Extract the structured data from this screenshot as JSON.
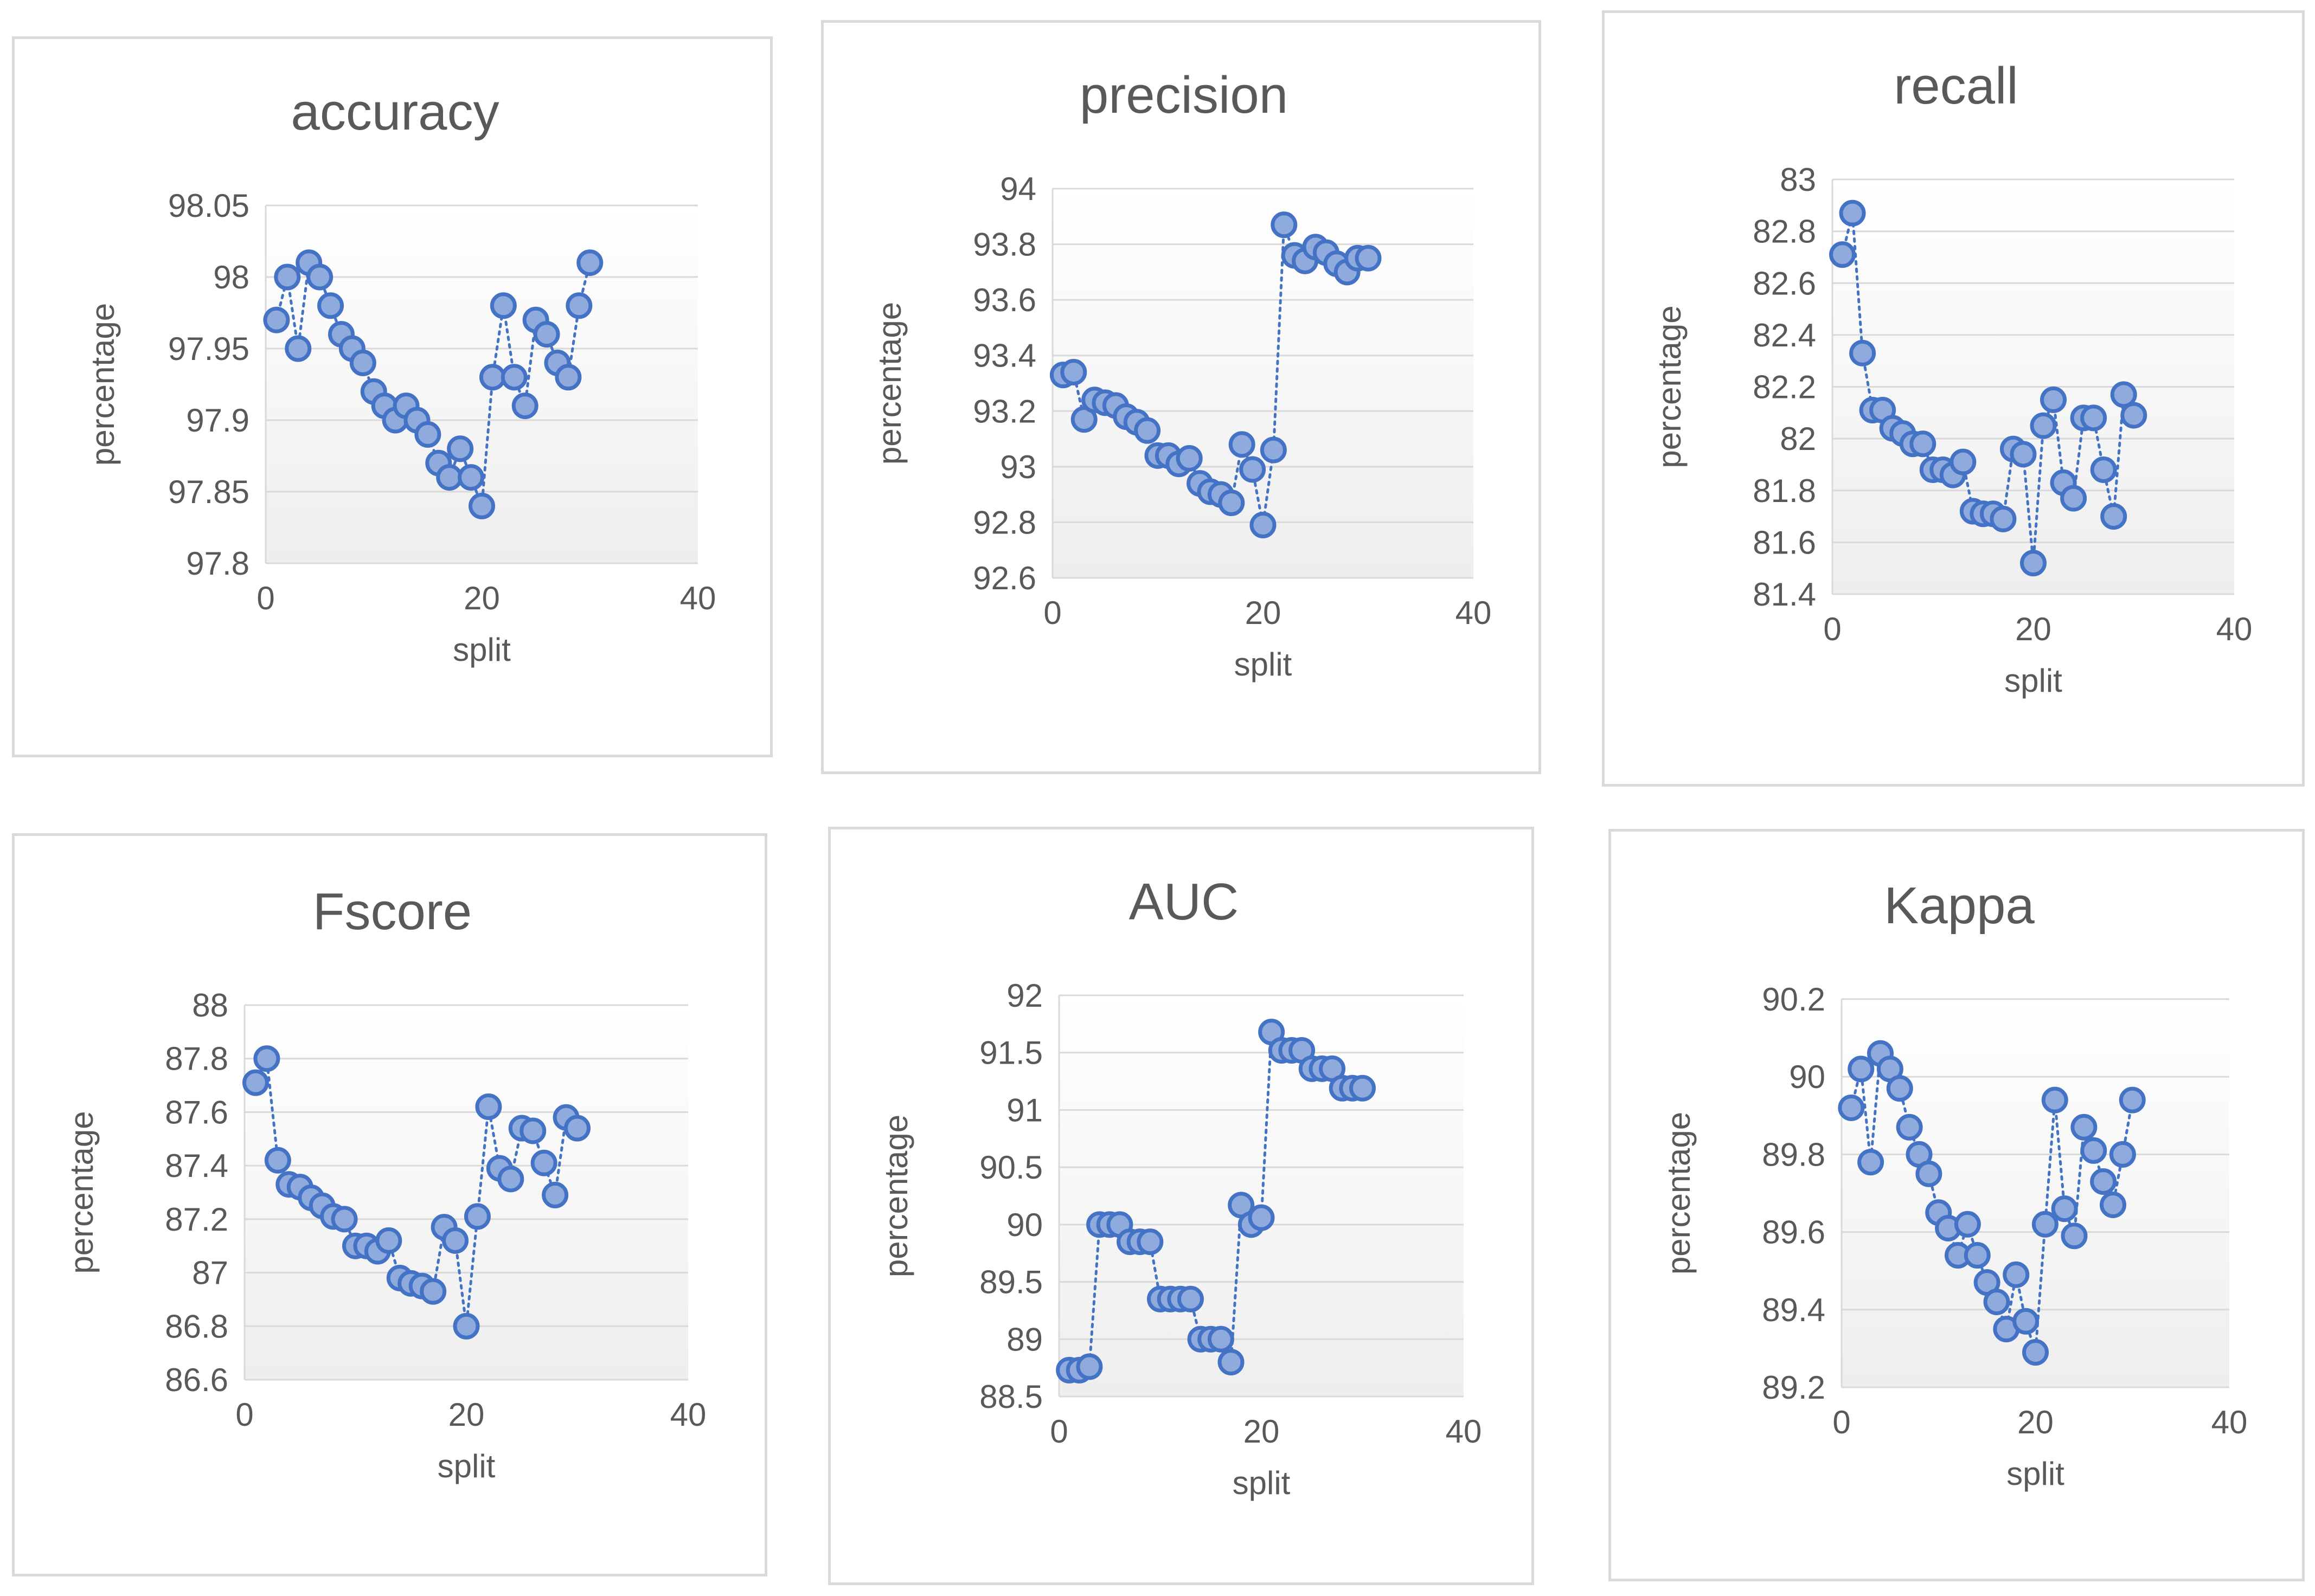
{
  "chart_data": [
    {
      "type": "scatter",
      "title": "accuracy",
      "xlabel": "split",
      "ylabel": "percentage",
      "xlim": [
        0,
        40
      ],
      "xticks": [
        "0",
        "20",
        "40"
      ],
      "ylim": [
        97.8,
        98.05
      ],
      "yticks": [
        "97.8",
        "97.85",
        "97.9",
        "97.95",
        "98",
        "98.05"
      ],
      "x": [
        1,
        2,
        3,
        4,
        5,
        6,
        7,
        8,
        9,
        10,
        11,
        12,
        13,
        14,
        15,
        16,
        17,
        18,
        19,
        20,
        21,
        22,
        23,
        24,
        25,
        26,
        27,
        28,
        29,
        30
      ],
      "y": [
        97.97,
        98.0,
        97.95,
        98.01,
        98.0,
        97.98,
        97.96,
        97.95,
        97.94,
        97.92,
        97.91,
        97.9,
        97.91,
        97.9,
        97.89,
        97.87,
        97.86,
        97.88,
        97.86,
        97.84,
        97.93,
        97.98,
        97.93,
        97.91,
        97.97,
        97.96,
        97.94,
        97.93,
        97.98,
        98.01
      ]
    },
    {
      "type": "scatter",
      "title": "precision",
      "xlabel": "split",
      "ylabel": "percentage",
      "xlim": [
        0,
        40
      ],
      "xticks": [
        "0",
        "20",
        "40"
      ],
      "ylim": [
        92.6,
        94
      ],
      "yticks": [
        "92.6",
        "92.8",
        "93",
        "93.2",
        "93.4",
        "93.6",
        "93.8",
        "94"
      ],
      "x": [
        1,
        2,
        3,
        4,
        5,
        6,
        7,
        8,
        9,
        10,
        11,
        12,
        13,
        14,
        15,
        16,
        17,
        18,
        19,
        20,
        21,
        22,
        23,
        24,
        25,
        26,
        27,
        28,
        29,
        30
      ],
      "y": [
        93.33,
        93.34,
        93.17,
        93.24,
        93.23,
        93.22,
        93.18,
        93.16,
        93.13,
        93.04,
        93.04,
        93.01,
        93.03,
        92.94,
        92.91,
        92.9,
        92.87,
        93.08,
        92.99,
        92.79,
        93.06,
        93.87,
        93.76,
        93.74,
        93.79,
        93.77,
        93.73,
        93.7,
        93.75,
        93.75
      ]
    },
    {
      "type": "scatter",
      "title": "recall",
      "xlabel": "split",
      "ylabel": "percentage",
      "xlim": [
        0,
        40
      ],
      "xticks": [
        "0",
        "20",
        "40"
      ],
      "ylim": [
        81.4,
        83
      ],
      "yticks": [
        "81.4",
        "81.6",
        "81.8",
        "82",
        "82.2",
        "82.4",
        "82.6",
        "82.8",
        "83"
      ],
      "x": [
        1,
        2,
        3,
        4,
        5,
        6,
        7,
        8,
        9,
        10,
        11,
        12,
        13,
        14,
        15,
        16,
        17,
        18,
        19,
        20,
        21,
        22,
        23,
        24,
        25,
        26,
        27,
        28,
        29,
        30
      ],
      "y": [
        82.71,
        82.87,
        82.33,
        82.11,
        82.11,
        82.04,
        82.02,
        81.98,
        81.98,
        81.88,
        81.88,
        81.86,
        81.91,
        81.72,
        81.71,
        81.71,
        81.69,
        81.96,
        81.94,
        81.52,
        82.05,
        82.15,
        81.83,
        81.77,
        82.08,
        82.08,
        81.88,
        81.7,
        82.17,
        82.09
      ]
    },
    {
      "type": "scatter",
      "title": "Fscore",
      "xlabel": "split",
      "ylabel": "percentage",
      "xlim": [
        0,
        40
      ],
      "xticks": [
        "0",
        "20",
        "40"
      ],
      "ylim": [
        86.6,
        88
      ],
      "yticks": [
        "86.6",
        "86.8",
        "87",
        "87.2",
        "87.4",
        "87.6",
        "87.8",
        "88"
      ],
      "x": [
        1,
        2,
        3,
        4,
        5,
        6,
        7,
        8,
        9,
        10,
        11,
        12,
        13,
        14,
        15,
        16,
        17,
        18,
        19,
        20,
        21,
        22,
        23,
        24,
        25,
        26,
        27,
        28,
        29,
        30
      ],
      "y": [
        87.71,
        87.8,
        87.42,
        87.33,
        87.32,
        87.28,
        87.25,
        87.21,
        87.2,
        87.1,
        87.1,
        87.08,
        87.12,
        86.98,
        86.96,
        86.95,
        86.93,
        87.17,
        87.12,
        86.8,
        87.21,
        87.62,
        87.39,
        87.35,
        87.54,
        87.53,
        87.41,
        87.29,
        87.58,
        87.54
      ]
    },
    {
      "type": "scatter",
      "title": "AUC",
      "xlabel": "split",
      "ylabel": "percentage",
      "xlim": [
        0,
        40
      ],
      "xticks": [
        "0",
        "20",
        "40"
      ],
      "ylim": [
        88.5,
        92
      ],
      "yticks": [
        "88.5",
        "89",
        "89.5",
        "90",
        "90.5",
        "91",
        "91.5",
        "92"
      ],
      "x": [
        1,
        2,
        3,
        4,
        5,
        6,
        7,
        8,
        9,
        10,
        11,
        12,
        13,
        14,
        15,
        16,
        17,
        18,
        19,
        20,
        21,
        22,
        23,
        24,
        25,
        26,
        27,
        28,
        29,
        30
      ],
      "y": [
        88.73,
        88.73,
        88.76,
        90.0,
        90.0,
        90.0,
        89.85,
        89.85,
        89.85,
        89.35,
        89.35,
        89.35,
        89.35,
        89.0,
        89.0,
        89.0,
        88.8,
        90.17,
        90.0,
        90.06,
        91.68,
        91.52,
        91.52,
        91.52,
        91.36,
        91.36,
        91.36,
        91.19,
        91.19,
        91.19
      ]
    },
    {
      "type": "scatter",
      "title": "Kappa",
      "xlabel": "split",
      "ylabel": "percentage",
      "xlim": [
        0,
        40
      ],
      "xticks": [
        "0",
        "20",
        "40"
      ],
      "ylim": [
        89.2,
        90.2
      ],
      "yticks": [
        "89.2",
        "89.4",
        "89.6",
        "89.8",
        "90",
        "90.2"
      ],
      "x": [
        1,
        2,
        3,
        4,
        5,
        6,
        7,
        8,
        9,
        10,
        11,
        12,
        13,
        14,
        15,
        16,
        17,
        18,
        19,
        20,
        21,
        22,
        23,
        24,
        25,
        26,
        27,
        28,
        29,
        30
      ],
      "y": [
        89.92,
        90.02,
        89.78,
        90.06,
        90.02,
        89.97,
        89.87,
        89.8,
        89.75,
        89.65,
        89.61,
        89.54,
        89.62,
        89.54,
        89.47,
        89.42,
        89.35,
        89.49,
        89.37,
        89.29,
        89.62,
        89.94,
        89.66,
        89.59,
        89.87,
        89.81,
        89.73,
        89.67,
        89.8,
        89.94
      ]
    }
  ]
}
